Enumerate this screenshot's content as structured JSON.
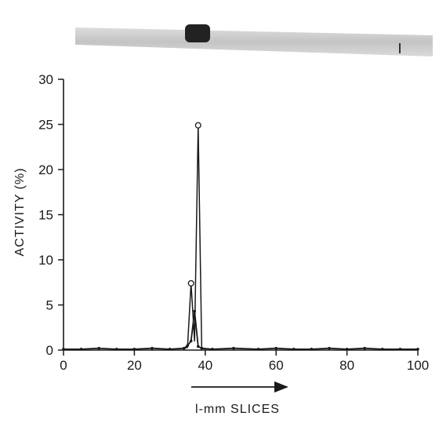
{
  "chart_data": {
    "type": "line",
    "title": "",
    "xlabel": "l-mm SLICES",
    "ylabel": "ACTIVITY (%)",
    "xlim": [
      0,
      100
    ],
    "ylim": [
      0,
      30
    ],
    "x_ticks": [
      0,
      20,
      40,
      60,
      80,
      100
    ],
    "y_ticks": [
      0,
      5,
      10,
      15,
      20,
      25,
      30
    ],
    "grid": false,
    "legend": "none",
    "series": [
      {
        "marker": "open-circle",
        "points": [
          [
            34,
            0.2
          ],
          [
            35,
            0.3
          ],
          [
            36,
            7.4
          ],
          [
            37,
            1.0
          ],
          [
            38,
            24.9
          ],
          [
            39,
            0.3
          ],
          [
            40,
            0.1
          ]
        ]
      },
      {
        "marker": "filled-dot",
        "points": [
          [
            0,
            0.1
          ],
          [
            5,
            0.1
          ],
          [
            10,
            0.2
          ],
          [
            15,
            0.1
          ],
          [
            20,
            0.1
          ],
          [
            25,
            0.2
          ],
          [
            30,
            0.1
          ],
          [
            34,
            0.2
          ],
          [
            35,
            0.5
          ],
          [
            36,
            1.0
          ],
          [
            37,
            4.3
          ],
          [
            38,
            0.4
          ],
          [
            39,
            0.2
          ],
          [
            42,
            0.1
          ],
          [
            48,
            0.2
          ],
          [
            55,
            0.1
          ],
          [
            60,
            0.2
          ],
          [
            65,
            0.1
          ],
          [
            70,
            0.1
          ],
          [
            75,
            0.2
          ],
          [
            80,
            0.1
          ],
          [
            85,
            0.2
          ],
          [
            90,
            0.1
          ],
          [
            95,
            0.1
          ],
          [
            100,
            0.1
          ]
        ]
      }
    ],
    "colors": {
      "ink": "#1a1a1a",
      "gel_band": "#222222",
      "gel_strip": "#c9c9c9"
    }
  }
}
